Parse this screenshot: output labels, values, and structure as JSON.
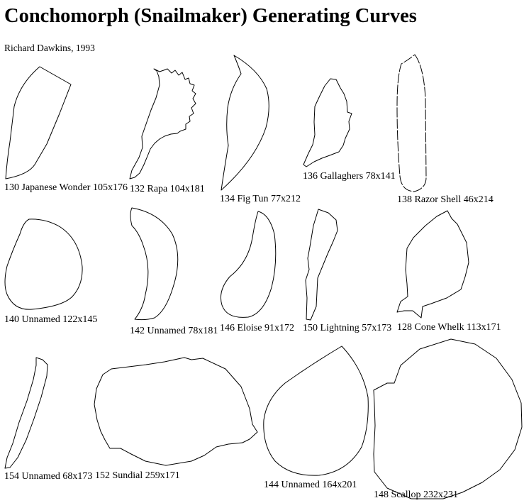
{
  "title": "Conchomorph (Snailmaker) Generating Curves",
  "subtitle": "Richard Dawkins, 1993",
  "shells": [
    {
      "id": "130",
      "caption": "130 Japanese Wonder 105x176"
    },
    {
      "id": "132",
      "caption": "132 Rapa 104x181"
    },
    {
      "id": "134",
      "caption": "134 Fig Tun 77x212"
    },
    {
      "id": "136",
      "caption": "136 Gallaghers 78x141"
    },
    {
      "id": "138",
      "caption": "138 Razor Shell 46x214"
    },
    {
      "id": "140",
      "caption": "140 Unnamed 122x145"
    },
    {
      "id": "142",
      "caption": "142 Unnamed 78x181"
    },
    {
      "id": "146",
      "caption": "146 Eloise 91x172"
    },
    {
      "id": "150",
      "caption": "150 Lightning 57x173"
    },
    {
      "id": "128",
      "caption": "128 Cone Whelk 113x171"
    },
    {
      "id": "154",
      "caption": "154 Unnamed 68x173"
    },
    {
      "id": "152",
      "caption": "152 Sundial 259x171"
    },
    {
      "id": "144",
      "caption": "144 Unnamed 164x201"
    },
    {
      "id": "148",
      "caption": "148 Scallop 232x231"
    }
  ]
}
